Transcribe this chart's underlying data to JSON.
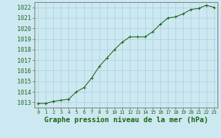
{
  "x": [
    0,
    1,
    2,
    3,
    4,
    5,
    6,
    7,
    8,
    9,
    10,
    11,
    12,
    13,
    14,
    15,
    16,
    17,
    18,
    19,
    20,
    21,
    22,
    23
  ],
  "y": [
    1012.9,
    1012.9,
    1013.1,
    1013.2,
    1013.3,
    1014.0,
    1014.4,
    1015.3,
    1016.4,
    1017.2,
    1018.0,
    1018.7,
    1019.2,
    1019.2,
    1019.2,
    1019.7,
    1020.4,
    1021.0,
    1021.1,
    1021.4,
    1021.8,
    1021.9,
    1022.2,
    1022.0
  ],
  "ylim": [
    1012.5,
    1022.5
  ],
  "yticks": [
    1013,
    1014,
    1015,
    1016,
    1017,
    1018,
    1019,
    1020,
    1021,
    1022
  ],
  "xlim": [
    -0.5,
    23.5
  ],
  "xticks": [
    0,
    1,
    2,
    3,
    4,
    5,
    6,
    7,
    8,
    9,
    10,
    11,
    12,
    13,
    14,
    15,
    16,
    17,
    18,
    19,
    20,
    21,
    22,
    23
  ],
  "xlabel": "Graphe pression niveau de la mer (hPa)",
  "line_color": "#1a6618",
  "marker": "+",
  "marker_color": "#1a6618",
  "bg_color": "#cce8f0",
  "grid_color": "#aacce0",
  "tick_label_color": "#1a6618",
  "xlabel_color": "#1a6618",
  "xtick_fontsize": 5.0,
  "ytick_fontsize": 6.0,
  "xlabel_fontsize": 7.5
}
